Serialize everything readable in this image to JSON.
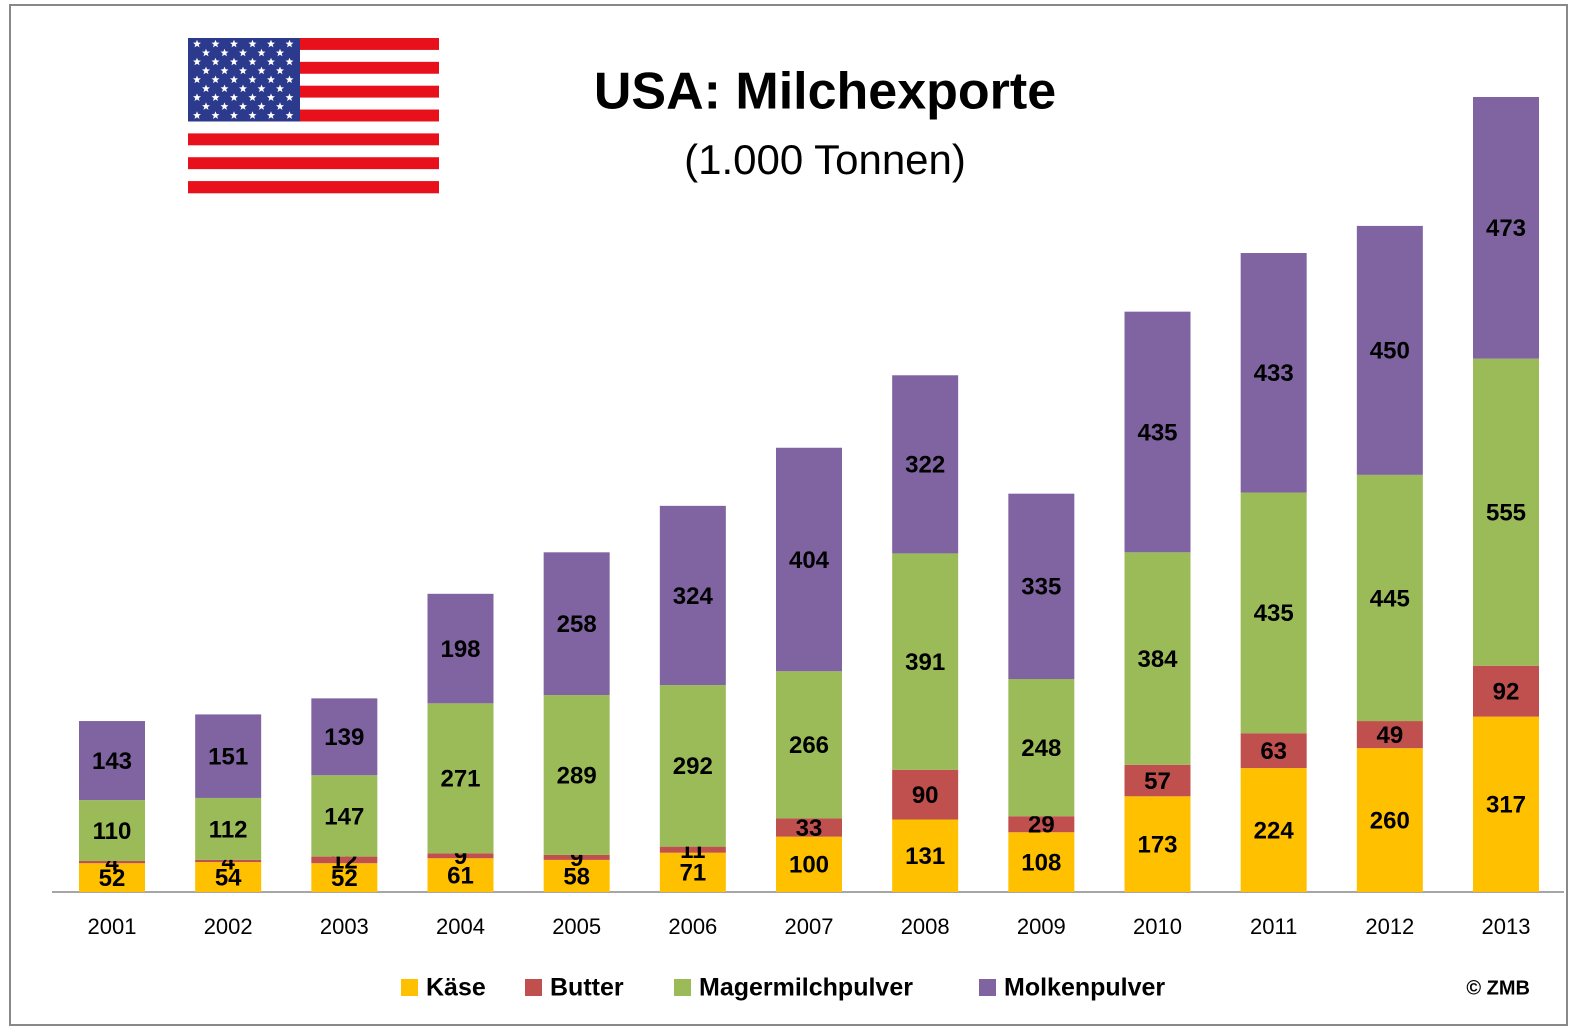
{
  "chart_data": {
    "type": "stacked_bar",
    "title": "USA: Milchexporte",
    "subtitle": "(1.000 Tonnen)",
    "source": "© ZMB",
    "categories": [
      "2001",
      "2002",
      "2003",
      "2004",
      "2005",
      "2006",
      "2007",
      "2008",
      "2009",
      "2010",
      "2011",
      "2012",
      "2013"
    ],
    "series": [
      {
        "name": "Käse",
        "color": "#FFC000",
        "values": [
          52,
          54,
          52,
          61,
          58,
          71,
          100,
          131,
          108,
          173,
          224,
          260,
          317
        ]
      },
      {
        "name": "Butter",
        "color": "#C0504D",
        "values": [
          4,
          4,
          12,
          9,
          9,
          11,
          33,
          90,
          29,
          57,
          63,
          49,
          92
        ]
      },
      {
        "name": "Magermilchpulver",
        "color": "#9BBB59",
        "values": [
          110,
          112,
          147,
          271,
          289,
          292,
          266,
          391,
          248,
          384,
          435,
          445,
          555
        ]
      },
      {
        "name": "Molkenpulver",
        "color": "#8064A2",
        "values": [
          143,
          151,
          139,
          198,
          258,
          324,
          404,
          322,
          335,
          435,
          433,
          450,
          473
        ]
      }
    ]
  }
}
